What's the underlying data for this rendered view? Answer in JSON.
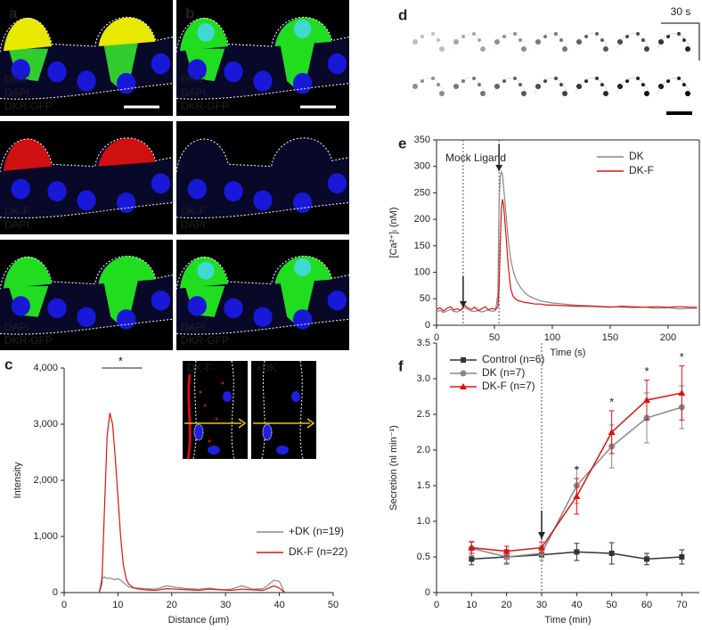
{
  "panel_labels": [
    "a",
    "b",
    "c",
    "d",
    "e",
    "f"
  ],
  "images": {
    "a": [
      {
        "labels": [
          {
            "text": "DK-F",
            "color": "#e02020"
          },
          {
            "text": "DAPI",
            "color": "#2a2af0"
          },
          {
            "text": "DKR-GFP",
            "color": "#22c022"
          }
        ]
      },
      {
        "labels": [
          {
            "text": "DK-F",
            "color": "#e02020"
          },
          {
            "text": "DAPI",
            "color": "#2a2af0"
          }
        ]
      },
      {
        "labels": [
          {
            "text": "DAPI",
            "color": "#2a2af0"
          },
          {
            "text": "DKR-GFP",
            "color": "#22c022"
          }
        ]
      }
    ],
    "b": [
      {
        "labels": [
          {
            "text": "DK-F",
            "color": "#e02020"
          },
          {
            "text": "DAPI",
            "color": "#2a2af0"
          },
          {
            "text": "DKR-GFP",
            "color": "#22c022"
          }
        ]
      },
      {
        "labels": [
          {
            "text": "DK-F",
            "color": "#e02020"
          },
          {
            "text": "DAPI",
            "color": "#2a2af0"
          }
        ]
      },
      {
        "labels": [
          {
            "text": "DAPI",
            "color": "#2a2af0"
          },
          {
            "text": "DKR-GFP",
            "color": "#22c022"
          }
        ]
      }
    ],
    "c_insets": [
      {
        "text": "DK-F",
        "color": "#e02020"
      },
      {
        "text": "+DK",
        "color": "#ffffff"
      }
    ],
    "d_scale": "30 s"
  },
  "chart_data": [
    {
      "type": "line",
      "xlabel": "Distance (µm)",
      "ylabel": "Intensity",
      "annotation": "*",
      "x": [
        6.5,
        7,
        7.5,
        8,
        8.5,
        9,
        9.5,
        10,
        10.5,
        11,
        11.5,
        12,
        13,
        14,
        15,
        17,
        19,
        21,
        23,
        25,
        27,
        29,
        31,
        33,
        35,
        37,
        39,
        40,
        41
      ],
      "series": [
        {
          "name": "+DK (n=19)",
          "color": "#888888",
          "values": [
            0,
            250,
            280,
            250,
            260,
            240,
            230,
            250,
            220,
            180,
            140,
            100,
            80,
            80,
            70,
            60,
            120,
            90,
            70,
            60,
            80,
            50,
            60,
            120,
            60,
            70,
            220,
            200,
            0
          ]
        },
        {
          "name": "DK-F (n=22)",
          "color": "#e01010",
          "values": [
            0,
            150,
            1500,
            2800,
            3200,
            3000,
            2400,
            1700,
            1000,
            500,
            250,
            150,
            80,
            60,
            50,
            40,
            70,
            60,
            50,
            40,
            60,
            50,
            40,
            60,
            50,
            40,
            120,
            80,
            0
          ]
        }
      ],
      "xlim": [
        0,
        50
      ],
      "xticks": [
        0,
        10,
        20,
        30,
        40,
        50
      ],
      "ylim": [
        0,
        4000
      ],
      "yticks": [
        0,
        {
          "value": 1000,
          "label": "1,000"
        },
        {
          "value": 2000,
          "label": "2,000"
        },
        {
          "value": 3000,
          "label": "3,000"
        },
        {
          "value": 4000,
          "label": "4,000"
        }
      ]
    },
    {
      "type": "line",
      "xlabel": "Time (s)",
      "ylabel": "[Ca²⁺]ᵢ (nM)",
      "annotation": "Mock Ligand",
      "events": [
        23,
        54
      ],
      "x": [
        0,
        3,
        6,
        9,
        12,
        15,
        18,
        21,
        24,
        27,
        30,
        33,
        36,
        39,
        42,
        45,
        48,
        51,
        53,
        54,
        55,
        56,
        57,
        58,
        60,
        62,
        64,
        66,
        68,
        70,
        73,
        76,
        80,
        85,
        90,
        95,
        100,
        110,
        120,
        130,
        140,
        150,
        160,
        170,
        180,
        190,
        200,
        210,
        220,
        225
      ],
      "series": [
        {
          "name": "DK",
          "color": "#888888",
          "values": [
            25,
            28,
            24,
            27,
            30,
            26,
            25,
            29,
            34,
            30,
            27,
            26,
            28,
            25,
            27,
            29,
            26,
            28,
            60,
            230,
            280,
            290,
            285,
            260,
            210,
            160,
            125,
            105,
            90,
            80,
            70,
            62,
            55,
            50,
            46,
            44,
            42,
            40,
            38,
            37,
            36,
            35,
            34,
            33,
            34,
            32,
            33,
            31,
            32,
            32
          ]
        },
        {
          "name": "DK-F",
          "color": "#e01010",
          "values": [
            30,
            33,
            27,
            32,
            35,
            29,
            31,
            28,
            38,
            33,
            30,
            34,
            28,
            31,
            35,
            29,
            32,
            30,
            35,
            70,
            150,
            220,
            238,
            225,
            170,
            110,
            70,
            55,
            50,
            47,
            45,
            43,
            42,
            40,
            40,
            38,
            38,
            37,
            36,
            36,
            35,
            34,
            36,
            35,
            34,
            35,
            34,
            35,
            34,
            34
          ]
        }
      ],
      "xlim": [
        0,
        227
      ],
      "xticks": [
        0,
        50,
        100,
        150,
        200
      ],
      "ylim": [
        0,
        350
      ],
      "yticks": [
        0,
        50,
        100,
        150,
        200,
        250,
        300,
        350
      ]
    },
    {
      "type": "errorline",
      "xlabel": "Time (min)",
      "ylabel": "Secretion (nl min⁻¹)",
      "annotations": [
        "*",
        "*",
        "*",
        "*"
      ],
      "events": [
        30
      ],
      "x": [
        10,
        20,
        30,
        40,
        50,
        60,
        70
      ],
      "series": [
        {
          "name": "Control (n=6)",
          "color": "#333333",
          "marker": "square",
          "values": [
            0.47,
            0.5,
            0.53,
            0.57,
            0.55,
            0.47,
            0.5
          ],
          "errors": [
            0.08,
            0.1,
            0.08,
            0.12,
            0.15,
            0.08,
            0.1
          ]
        },
        {
          "name": "DK (n=7)",
          "color": "#888888",
          "marker": "circle",
          "values": [
            0.62,
            0.5,
            0.55,
            1.5,
            2.05,
            2.45,
            2.6
          ],
          "errors": [
            0.1,
            0.08,
            0.1,
            0.25,
            0.3,
            0.35,
            0.3
          ]
        },
        {
          "name": "DK-F (n=7)",
          "color": "#e01010",
          "marker": "triangle",
          "values": [
            0.63,
            0.58,
            0.63,
            1.35,
            2.25,
            2.7,
            2.8
          ],
          "errors": [
            0.08,
            0.07,
            0.08,
            0.25,
            0.3,
            0.28,
            0.38
          ]
        }
      ],
      "xlim": [
        0,
        75
      ],
      "xticks": [
        0,
        10,
        20,
        30,
        40,
        50,
        60,
        70
      ],
      "ylim": [
        0,
        3.5
      ],
      "yticks": [
        0,
        0.5,
        {
          "value": 1,
          "label": "1.0"
        },
        1.5,
        {
          "value": 2,
          "label": "2.0"
        },
        2.5,
        {
          "value": 3,
          "label": "3.0"
        },
        3.5
      ]
    }
  ]
}
